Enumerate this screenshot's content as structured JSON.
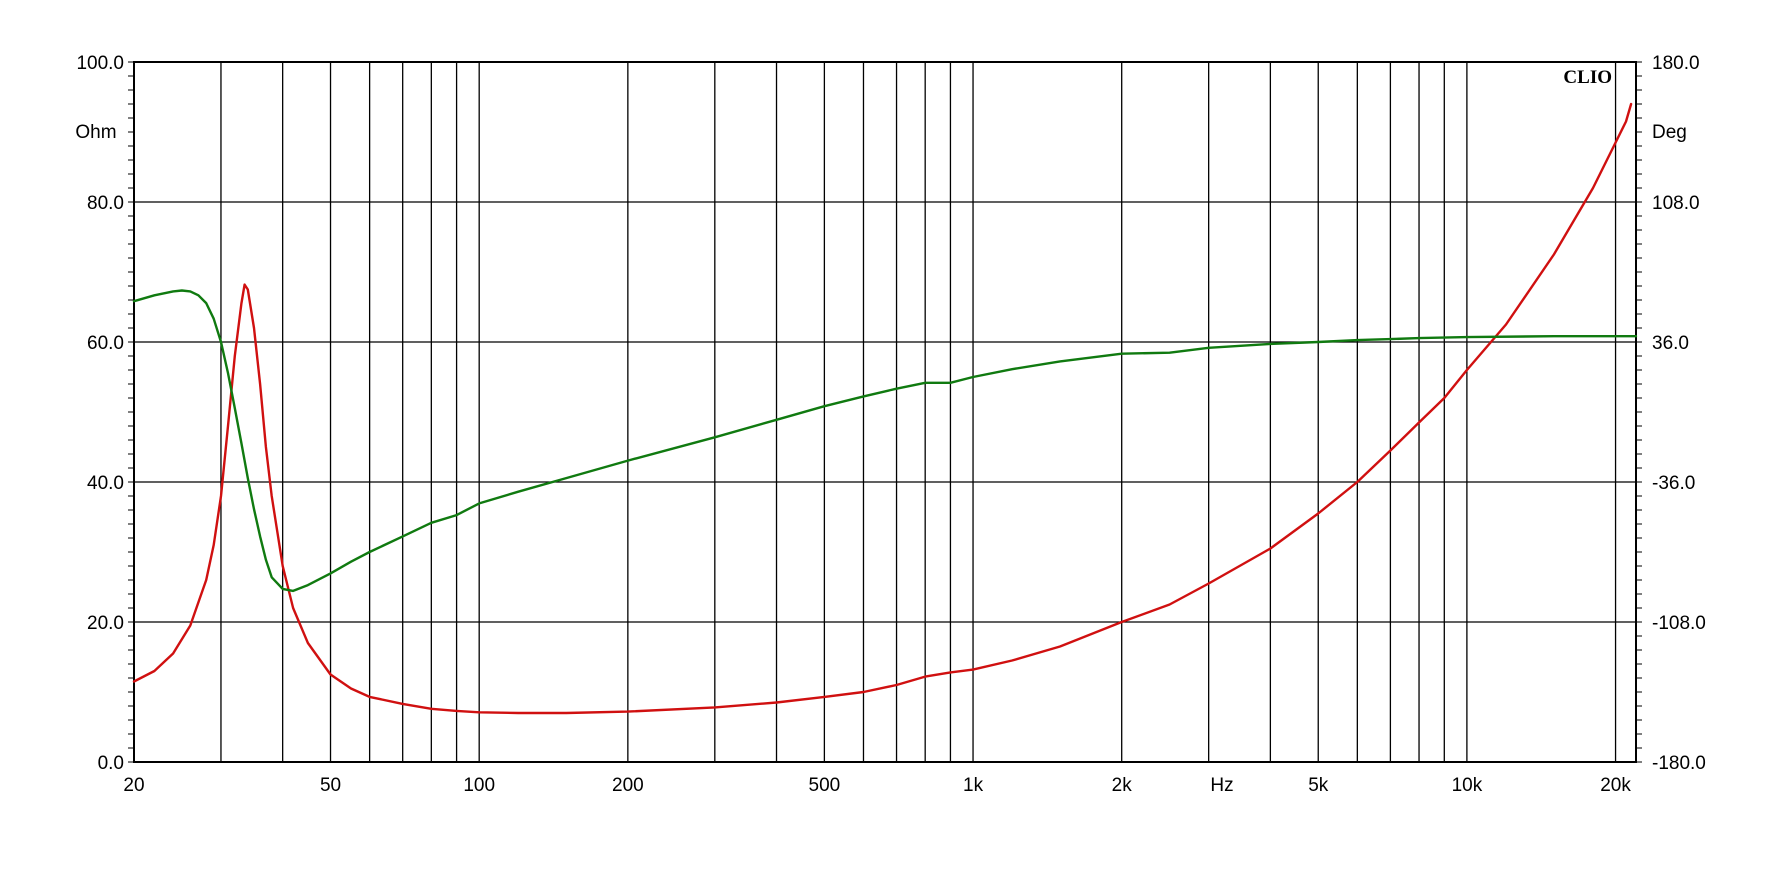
{
  "chart_data": {
    "type": "line",
    "brand": "CLIO",
    "x_axis": {
      "scale": "log",
      "range": [
        20,
        22000
      ],
      "unit_label": "Hz",
      "tick_labels": [
        {
          "value": 20,
          "label": "20"
        },
        {
          "value": 50,
          "label": "50"
        },
        {
          "value": 100,
          "label": "100"
        },
        {
          "value": 200,
          "label": "200"
        },
        {
          "value": 500,
          "label": "500"
        },
        {
          "value": 1000,
          "label": "1k"
        },
        {
          "value": 2000,
          "label": "2k"
        },
        {
          "value": 5000,
          "label": "5k"
        },
        {
          "value": 10000,
          "label": "10k"
        },
        {
          "value": 20000,
          "label": "20k"
        }
      ],
      "gridlines": [
        30,
        40,
        50,
        60,
        70,
        80,
        90,
        100,
        200,
        300,
        400,
        500,
        600,
        700,
        800,
        900,
        1000,
        2000,
        3000,
        4000,
        5000,
        6000,
        7000,
        8000,
        9000,
        10000,
        20000
      ]
    },
    "y_left": {
      "unit_label": "Ohm",
      "range": [
        0,
        100
      ],
      "ticks": [
        {
          "value": 0,
          "label": "0.0"
        },
        {
          "value": 20,
          "label": "20.0"
        },
        {
          "value": 40,
          "label": "40.0"
        },
        {
          "value": 60,
          "label": "60.0"
        },
        {
          "value": 80,
          "label": "80.0"
        },
        {
          "value": 100,
          "label": "100.0"
        }
      ]
    },
    "y_right": {
      "unit_label": "Deg",
      "range": [
        -180,
        180
      ],
      "ticks": [
        {
          "value": -180,
          "label": "-180.0"
        },
        {
          "value": -108,
          "label": "-108.0"
        },
        {
          "value": -36,
          "label": "-36.0"
        },
        {
          "value": 36,
          "label": "36.0"
        },
        {
          "value": 108,
          "label": "108.0"
        },
        {
          "value": 180,
          "label": "180.0"
        }
      ]
    },
    "grid": true,
    "series": [
      {
        "color": "#d01010",
        "axis": "left",
        "points": [
          [
            20,
            11.5
          ],
          [
            22,
            13.0
          ],
          [
            24,
            15.5
          ],
          [
            26,
            19.5
          ],
          [
            28,
            26.0
          ],
          [
            29,
            31.0
          ],
          [
            30,
            38.0
          ],
          [
            31,
            48.0
          ],
          [
            32,
            58.0
          ],
          [
            33,
            65.5
          ],
          [
            33.5,
            68.2
          ],
          [
            34,
            67.5
          ],
          [
            35,
            62.0
          ],
          [
            36,
            54.0
          ],
          [
            37,
            45.0
          ],
          [
            38,
            38.0
          ],
          [
            40,
            28.0
          ],
          [
            42,
            22.0
          ],
          [
            45,
            17.0
          ],
          [
            50,
            12.5
          ],
          [
            55,
            10.5
          ],
          [
            60,
            9.3
          ],
          [
            70,
            8.3
          ],
          [
            80,
            7.6
          ],
          [
            90,
            7.3
          ],
          [
            100,
            7.1
          ],
          [
            120,
            7.0
          ],
          [
            150,
            7.0
          ],
          [
            200,
            7.2
          ],
          [
            300,
            7.8
          ],
          [
            400,
            8.5
          ],
          [
            500,
            9.3
          ],
          [
            600,
            10.0
          ],
          [
            700,
            11.0
          ],
          [
            800,
            12.2
          ],
          [
            900,
            12.8
          ],
          [
            1000,
            13.2
          ],
          [
            1200,
            14.5
          ],
          [
            1500,
            16.5
          ],
          [
            2000,
            20.0
          ],
          [
            2500,
            22.5
          ],
          [
            3000,
            25.5
          ],
          [
            4000,
            30.5
          ],
          [
            5000,
            35.5
          ],
          [
            6000,
            40.0
          ],
          [
            7000,
            44.5
          ],
          [
            8000,
            48.5
          ],
          [
            9000,
            52.0
          ],
          [
            10000,
            56.0
          ],
          [
            12000,
            62.5
          ],
          [
            15000,
            72.5
          ],
          [
            18000,
            82.0
          ],
          [
            20000,
            88.5
          ],
          [
            21000,
            91.5
          ],
          [
            21500,
            94.0
          ]
        ]
      },
      {
        "color": "#107a10",
        "axis": "right",
        "points": [
          [
            20,
            57
          ],
          [
            22,
            60
          ],
          [
            24,
            62
          ],
          [
            25,
            62.5
          ],
          [
            26,
            62
          ],
          [
            27,
            60
          ],
          [
            28,
            56
          ],
          [
            29,
            48
          ],
          [
            30,
            36
          ],
          [
            31,
            20
          ],
          [
            32,
            2
          ],
          [
            33,
            -16
          ],
          [
            34,
            -34
          ],
          [
            35,
            -50
          ],
          [
            36,
            -64
          ],
          [
            37,
            -76
          ],
          [
            38,
            -85
          ],
          [
            40,
            -91
          ],
          [
            42,
            -92
          ],
          [
            45,
            -89
          ],
          [
            50,
            -83
          ],
          [
            55,
            -77
          ],
          [
            60,
            -72
          ],
          [
            70,
            -64
          ],
          [
            80,
            -57
          ],
          [
            90,
            -53
          ],
          [
            100,
            -47
          ],
          [
            120,
            -41
          ],
          [
            150,
            -34
          ],
          [
            200,
            -25
          ],
          [
            300,
            -13
          ],
          [
            400,
            -4
          ],
          [
            500,
            3
          ],
          [
            600,
            8
          ],
          [
            700,
            12
          ],
          [
            800,
            15
          ],
          [
            900,
            15
          ],
          [
            1000,
            18
          ],
          [
            1200,
            22
          ],
          [
            1500,
            26
          ],
          [
            2000,
            30
          ],
          [
            2500,
            30.5
          ],
          [
            3000,
            33
          ],
          [
            4000,
            35
          ],
          [
            5000,
            36
          ],
          [
            6000,
            37
          ],
          [
            7000,
            37.5
          ],
          [
            8000,
            38
          ],
          [
            10000,
            38.5
          ],
          [
            15000,
            39
          ],
          [
            22000,
            39
          ]
        ]
      }
    ]
  }
}
